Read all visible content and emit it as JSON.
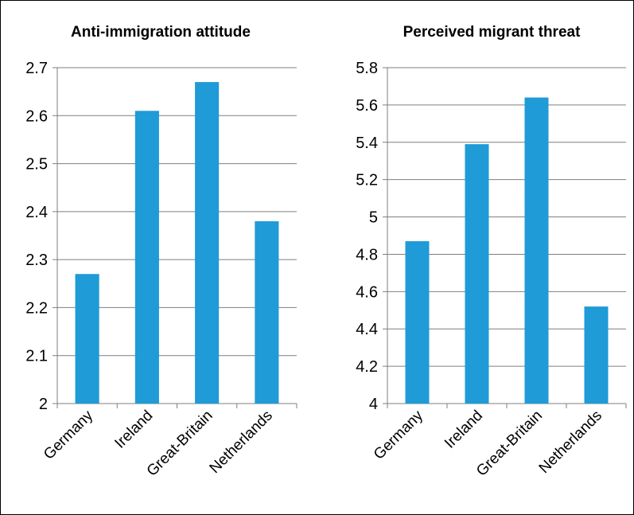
{
  "chart_data": [
    {
      "type": "bar",
      "title": "Anti-immigration attitude",
      "categories": [
        "Germany",
        "Ireland",
        "Great-Britain",
        "Netherlands"
      ],
      "values": [
        2.27,
        2.61,
        2.67,
        2.38
      ],
      "ylim": [
        2,
        2.7
      ],
      "yticks": [
        "2",
        "2.1",
        "2.2",
        "2.3",
        "2.4",
        "2.5",
        "2.6",
        "2.7"
      ],
      "grid": true,
      "bar_color": "#1f9bd7"
    },
    {
      "type": "bar",
      "title": "Perceived migrant threat",
      "categories": [
        "Germany",
        "Ireland",
        "Great-Britain",
        "Netherlands"
      ],
      "values": [
        4.87,
        5.39,
        5.64,
        4.52
      ],
      "ylim": [
        4,
        5.8
      ],
      "yticks": [
        "4",
        "4.2",
        "4.4",
        "4.6",
        "4.8",
        "5",
        "5.2",
        "5.4",
        "5.6",
        "5.8"
      ],
      "grid": true,
      "bar_color": "#1f9bd7"
    }
  ]
}
